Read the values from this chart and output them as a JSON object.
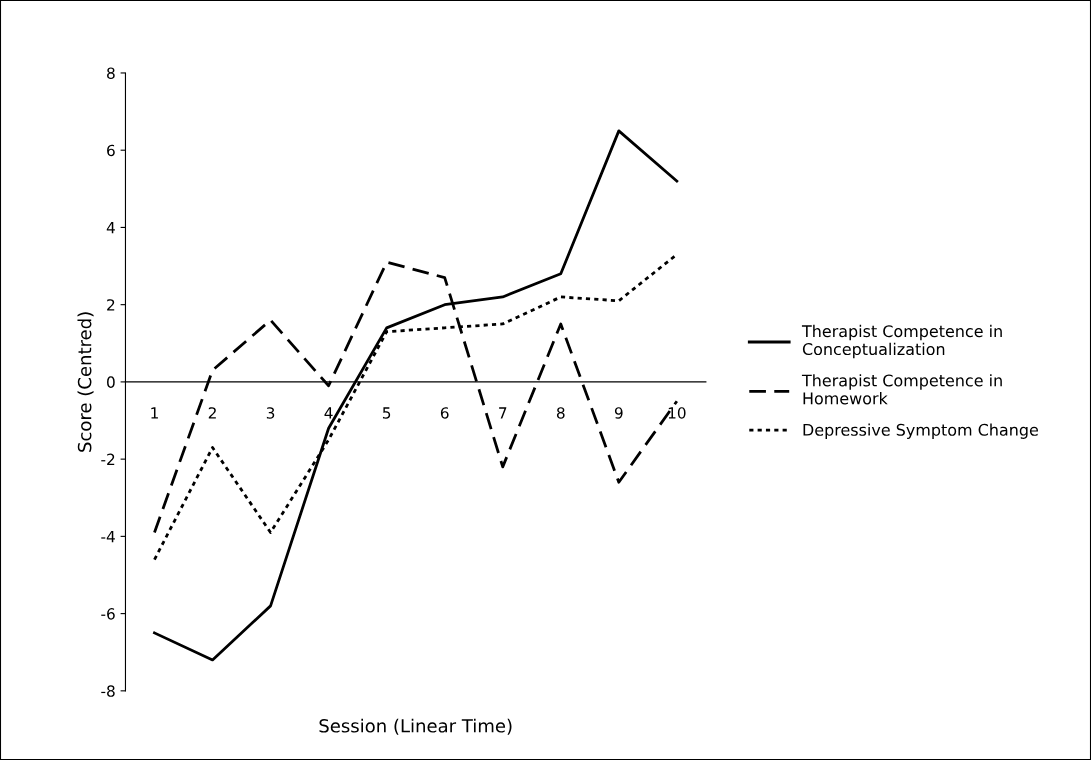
{
  "chart_data": {
    "type": "line",
    "xlabel": "Session (Linear Time)",
    "ylabel": "Score (Centred)",
    "categories": [
      "1",
      "2",
      "3",
      "4",
      "5",
      "6",
      "7",
      "8",
      "9",
      "10"
    ],
    "series": [
      {
        "name": "Therapist Competence in\nConceptualization",
        "color": "#000000",
        "line_style": "solid",
        "values": [
          -6.5,
          -7.2,
          -5.8,
          -1.2,
          1.4,
          2.0,
          2.2,
          2.8,
          6.5,
          5.2
        ]
      },
      {
        "name": "Therapist Competence in\nHomework",
        "color": "#000000",
        "line_style": "dashed",
        "values": [
          -3.9,
          0.3,
          1.6,
          -0.1,
          3.1,
          2.7,
          -2.2,
          1.5,
          -2.6,
          -0.5
        ]
      },
      {
        "name": "Depressive Symptom Change",
        "color": "#000000",
        "line_style": "dotted",
        "values": [
          -4.6,
          -1.7,
          -3.9,
          -1.5,
          1.3,
          1.4,
          1.5,
          2.2,
          2.1,
          3.3
        ]
      }
    ],
    "ylim": [
      -8,
      8
    ],
    "yticks": [
      -8,
      -6,
      -4,
      -2,
      0,
      2,
      4,
      6,
      8
    ],
    "grid": false,
    "legend": "right",
    "marker": "none"
  }
}
